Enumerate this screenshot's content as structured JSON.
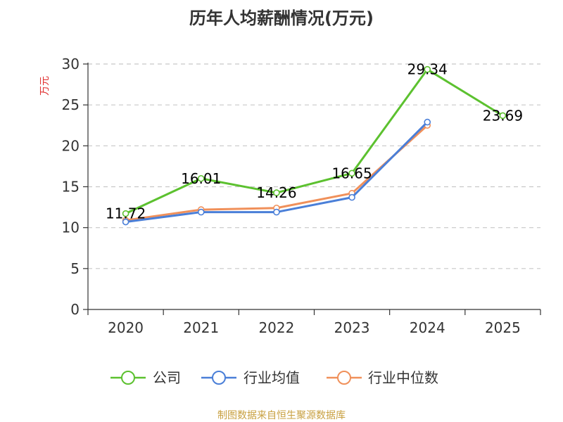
{
  "chart_data": {
    "type": "line",
    "title": "历年人均薪酬情况(万元)",
    "ylabel": "万元",
    "xlabel": "",
    "categories": [
      "2020",
      "2021",
      "2022",
      "2023",
      "2024",
      "2025"
    ],
    "ylim": [
      0,
      30
    ],
    "yticks": [
      "0",
      "5",
      "10",
      "15",
      "20",
      "25",
      "30"
    ],
    "grid": true,
    "legend_position": "bottom",
    "series": [
      {
        "name": "公司",
        "color": "#5cc12f",
        "values": [
          11.72,
          16.01,
          14.26,
          16.65,
          29.34,
          23.69
        ],
        "labels": [
          "11.72",
          "16.01",
          "14.26",
          "16.65",
          "29.34",
          "23.69"
        ]
      },
      {
        "name": "行业均值",
        "color": "#4a7fd8",
        "values": [
          10.7,
          11.9,
          11.9,
          13.7,
          22.9,
          null
        ]
      },
      {
        "name": "行业中位数",
        "color": "#f0905a",
        "values": [
          10.9,
          12.2,
          12.4,
          14.2,
          22.5,
          null
        ]
      }
    ]
  },
  "source": "制图数据来自恒生聚源数据库"
}
